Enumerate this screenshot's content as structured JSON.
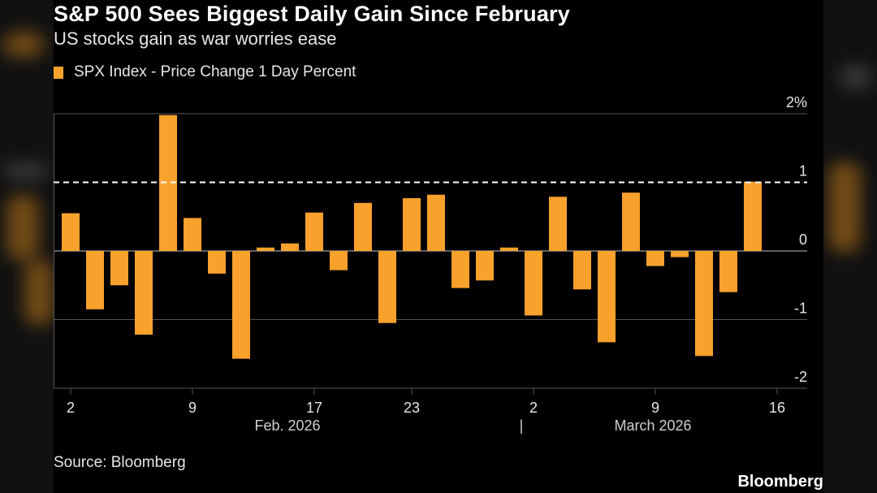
{
  "chart_title": "S&P 500 Sees Biggest Daily Gain Since February",
  "chart_subtitle": "US stocks gain as war worries ease",
  "source": "Source: Bloomberg",
  "brand": "Bloomberg",
  "colors": {
    "bar": "#f8a12d",
    "background": "#000000",
    "gridline": "#555555",
    "reference_line": "#ffffff"
  },
  "chart_data": {
    "type": "bar",
    "title": "S&P 500 Sees Biggest Daily Gain Since February",
    "subtitle": "US stocks gain as war worries ease",
    "series": [
      {
        "name": "SPX Index - Price Change 1 Day Percent",
        "values": [
          0.55,
          -0.85,
          -0.5,
          -1.22,
          1.98,
          0.48,
          -0.33,
          -1.57,
          0.05,
          0.11,
          0.56,
          -0.28,
          0.7,
          -1.05,
          0.77,
          0.82,
          -0.54,
          -0.43,
          0.05,
          -0.94,
          0.79,
          -0.56,
          -1.33,
          0.85,
          -0.22,
          -0.09,
          -1.53,
          -0.6,
          1.01
        ]
      }
    ],
    "ylim": [
      -2,
      2
    ],
    "y_ticks": [
      2,
      1,
      0,
      -1,
      -2
    ],
    "y_tick_labels": [
      "2%",
      "1",
      "0",
      "-1",
      "-2"
    ],
    "reference_line": {
      "value": 1,
      "style": "dashed"
    },
    "x_tick_labels": [
      {
        "label": "2",
        "bar_index": 0
      },
      {
        "label": "9",
        "bar_index": 5
      },
      {
        "label": "17",
        "bar_index": 10
      },
      {
        "label": "23",
        "bar_index": 14
      },
      {
        "label": "2",
        "bar_index": 19
      },
      {
        "label": "9",
        "bar_index": 24
      },
      {
        "label": "16",
        "bar_index": 29
      }
    ],
    "month_labels": [
      {
        "label": "Feb. 2026",
        "bar_index": 9
      },
      {
        "label": "March 2026",
        "bar_index": 24
      }
    ],
    "month_separator": {
      "label": "|",
      "bar_index": 18.5
    },
    "legend_position": "top-left",
    "grid": true
  }
}
